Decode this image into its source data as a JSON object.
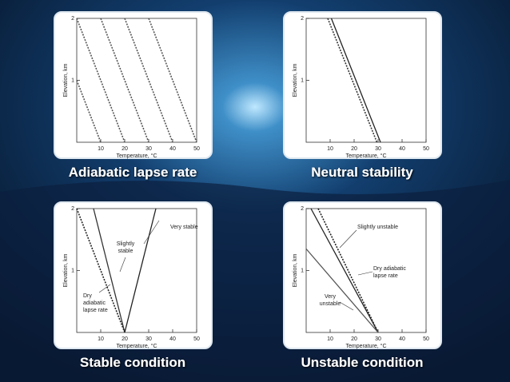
{
  "chart_data": [
    {
      "type": "line",
      "title": "Adiabatic lapse rate",
      "x_label": "Temperature, °C",
      "y_label": "Elevation, km",
      "xlim": [
        0,
        50
      ],
      "ylim": [
        0,
        2
      ],
      "xticks": [
        10,
        20,
        30,
        40,
        50
      ],
      "yticks": [
        1,
        2
      ],
      "series": [
        {
          "x": [
            0,
            10
          ],
          "values": [
            1,
            0
          ],
          "color": "#555555",
          "linestyle": "dashed"
        },
        {
          "x": [
            0,
            20
          ],
          "values": [
            2,
            0
          ],
          "color": "#555555",
          "linestyle": "dashed"
        },
        {
          "x": [
            10,
            30
          ],
          "values": [
            2,
            0
          ],
          "color": "#555555",
          "linestyle": "dashed"
        },
        {
          "x": [
            20,
            40
          ],
          "values": [
            2,
            0
          ],
          "color": "#555555",
          "linestyle": "dashed"
        },
        {
          "x": [
            30,
            50
          ],
          "values": [
            2,
            0
          ],
          "color": "#555555",
          "linestyle": "dashed"
        }
      ],
      "annotations": []
    },
    {
      "type": "line",
      "title": "Neutral stability",
      "x_label": "Temperature, °C",
      "y_label": "Elevation, km",
      "xlim": [
        0,
        50
      ],
      "ylim": [
        0,
        2
      ],
      "xticks": [
        10,
        20,
        30,
        40,
        50
      ],
      "yticks": [
        1,
        2
      ],
      "series": [
        {
          "x": [
            9,
            29.5
          ],
          "values": [
            2,
            0
          ],
          "color": "#333333",
          "linestyle": "dashed"
        },
        {
          "x": [
            10.5,
            31
          ],
          "values": [
            2,
            0
          ],
          "color": "#222222",
          "linestyle": "solid"
        }
      ],
      "annotations": []
    },
    {
      "type": "line",
      "title": "Stable condition",
      "x_label": "Temperature, °C",
      "y_label": "Elevation, km",
      "xlim": [
        0,
        50
      ],
      "ylim": [
        0,
        2
      ],
      "xticks": [
        10,
        20,
        30,
        40,
        50
      ],
      "yticks": [
        1,
        2
      ],
      "series": [
        {
          "x": [
            0,
            20
          ],
          "values": [
            2,
            0
          ],
          "color": "#222222",
          "linestyle": "dashed"
        },
        {
          "x": [
            7,
            20
          ],
          "values": [
            2,
            0
          ],
          "color": "#333333",
          "linestyle": "solid"
        },
        {
          "x": [
            20,
            33
          ],
          "values": [
            0,
            2
          ],
          "color": "#222222",
          "linestyle": "solid"
        }
      ],
      "annotations": [
        {
          "text": [
            "Very stable"
          ]
        },
        {
          "text": [
            "Slightly",
            "stable"
          ]
        },
        {
          "text": [
            "Dry",
            "adiabatic",
            "lapse rate"
          ]
        }
      ]
    },
    {
      "type": "line",
      "title": "Unstable condition",
      "x_label": "Temperature, °C",
      "y_label": "Elevation, km",
      "xlim": [
        0,
        50
      ],
      "ylim": [
        0,
        2
      ],
      "xticks": [
        10,
        20,
        30,
        40,
        50
      ],
      "yticks": [
        1,
        2
      ],
      "series": [
        {
          "x": [
            5,
            30
          ],
          "values": [
            2,
            0
          ],
          "color": "#222222",
          "linestyle": "dashed"
        },
        {
          "x": [
            2,
            30
          ],
          "values": [
            2,
            0
          ],
          "color": "#222222",
          "linestyle": "solid"
        },
        {
          "x": [
            0,
            30
          ],
          "values": [
            1.35,
            0
          ],
          "color": "#555555",
          "linestyle": "solid"
        }
      ],
      "annotations": [
        {
          "text": [
            "Slightly unstable"
          ]
        },
        {
          "text": [
            "Dry adiabatic",
            "lapse rate"
          ]
        },
        {
          "text": [
            "Very",
            "unstable"
          ]
        }
      ]
    }
  ]
}
